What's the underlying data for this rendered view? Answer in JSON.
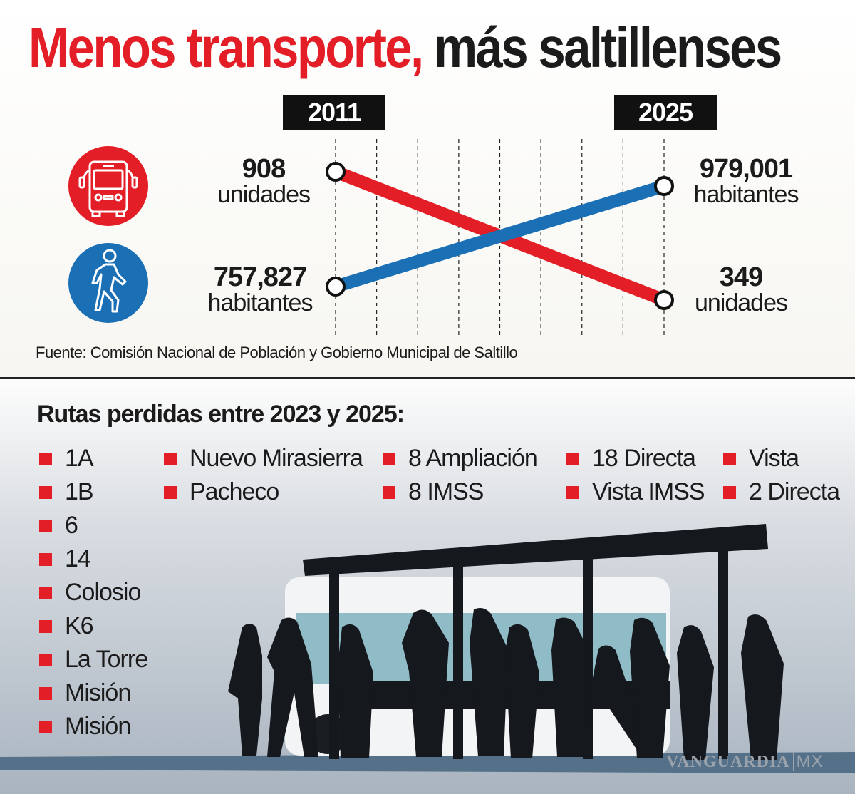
{
  "title": {
    "part1": "Menos transporte,",
    "part2": "más saltillenses"
  },
  "colors": {
    "red": "#e31e26",
    "blue": "#1a6fb5",
    "dark": "#1b1b1b"
  },
  "chart_data": {
    "type": "line",
    "subtype": "slope",
    "categories": [
      "2011",
      "2025"
    ],
    "series": [
      {
        "name": "unidades",
        "values": [
          908,
          349
        ],
        "color": "#e31e26",
        "icon": "bus-icon"
      },
      {
        "name": "habitantes",
        "values": [
          757827,
          979001
        ],
        "color": "#1a6fb5",
        "icon": "pedestrian-icon"
      }
    ],
    "grid": true
  },
  "labels": {
    "left_top": {
      "value": "908",
      "unit": "unidades"
    },
    "left_bottom": {
      "value": "757,827",
      "unit": "habitantes"
    },
    "right_top": {
      "value": "979,001",
      "unit": "habitantes"
    },
    "right_bottom": {
      "value": "349",
      "unit": "unidades"
    }
  },
  "source": "Fuente: Comisión Nacional de Población y Gobierno Municipal de Saltillo",
  "routes": {
    "title": "Rutas perdidas entre 2023 y 2025:",
    "columns": [
      [
        "1A",
        "1B",
        "6",
        "14",
        "Colosio",
        "K6",
        "La Torre",
        "Misión",
        "Misión"
      ],
      [
        "Nuevo Mirasierra",
        "Pacheco"
      ],
      [
        "8 Ampliación",
        "8 IMSS"
      ],
      [
        "18 Directa",
        "Vista IMSS"
      ],
      [
        "Vista",
        "2 Directa"
      ]
    ]
  },
  "watermark": {
    "brand": "VANGUARDIA",
    "suffix": "MX"
  }
}
